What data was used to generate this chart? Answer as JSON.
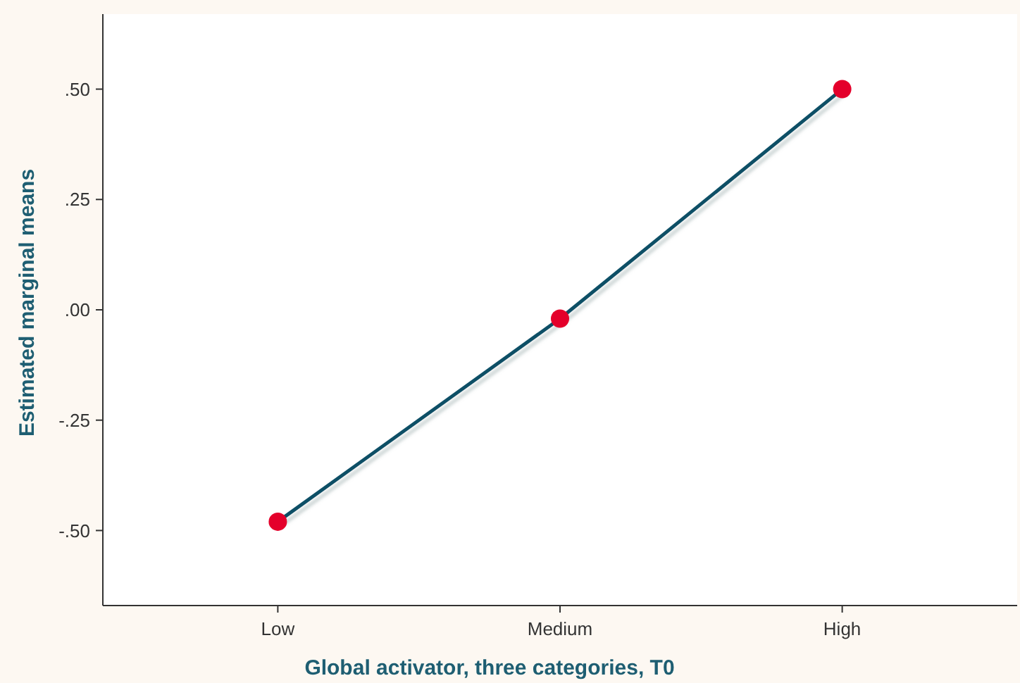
{
  "chart_data": {
    "type": "line",
    "xlabel": "Global activator, three categories, T0",
    "ylabel": "Estimated marginal means",
    "categories": [
      "Low",
      "Medium",
      "High"
    ],
    "series": [
      {
        "color": "#0d4f66",
        "colors": [
          "#e4002b",
          "#e4002b",
          "#e4002b"
        ],
        "values": [
          -0.48,
          -0.02,
          0.5
        ]
      }
    ],
    "marker": "circle",
    "ylim": [
      -0.67,
      0.67
    ],
    "yticks": [
      {
        "value": -0.5,
        "label": "-.50"
      },
      {
        "value": -0.25,
        "label": "-.25"
      },
      {
        "value": 0,
        "label": ".00"
      },
      {
        "value": 0.25,
        "label": ".25"
      },
      {
        "value": 0.5,
        "label": ".50"
      }
    ],
    "grid": false
  }
}
